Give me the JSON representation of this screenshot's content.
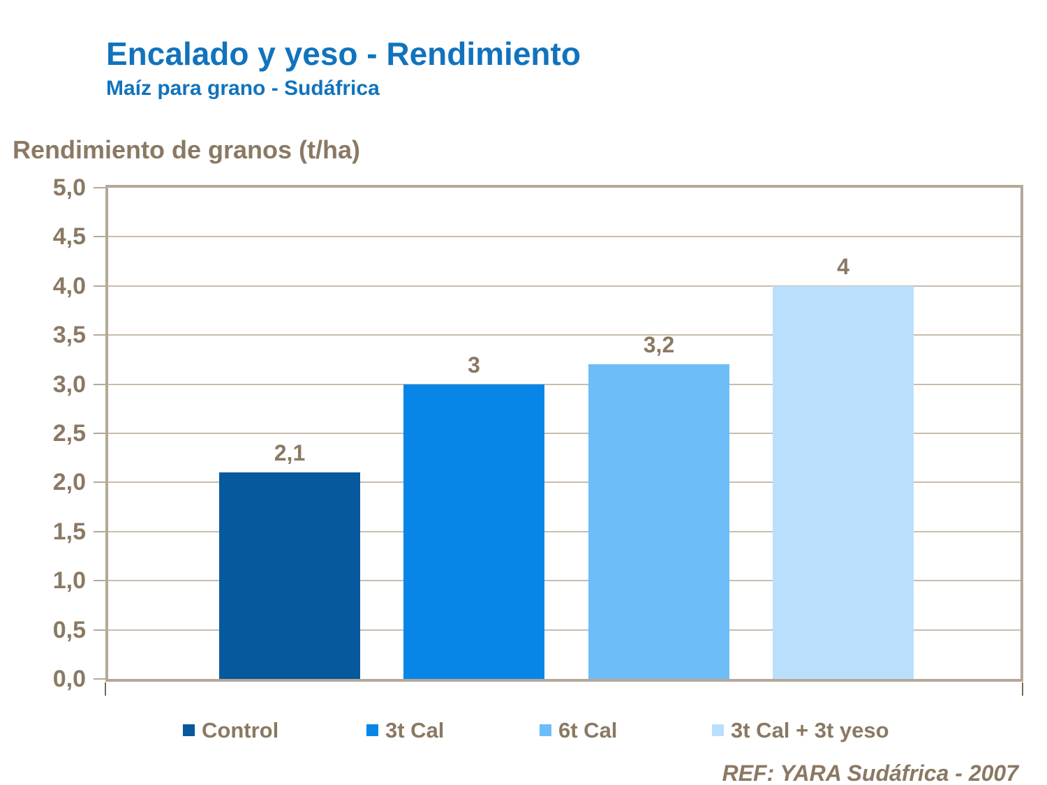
{
  "title": "Encalado y yeso - Rendimiento",
  "subtitle": "Maíz para grano - Sudáfrica",
  "axis_title": "Rendimiento de granos (t/ha)",
  "ref_note": "REF: YARA Sudáfrica - 2007",
  "colors": {
    "title_blue": "#1173BD",
    "text_brown": "#8A7963",
    "plot_border_tan": "#B5A899",
    "gridline_tan": "#C8BCAE",
    "tick_dash_tan": "#B5A899",
    "axis_stub_brown": "#7B6A53"
  },
  "chart_data": {
    "type": "bar",
    "categories": [
      "Control",
      "3t Cal",
      "6t Cal",
      "3t Cal + 3t yeso"
    ],
    "values": [
      2.1,
      3,
      3.2,
      4
    ],
    "value_labels": [
      "2,1",
      "3",
      "3,2",
      "4"
    ],
    "series_colors": [
      "#05599C",
      "#0886E8",
      "#6DBDF8",
      "#BADFFC"
    ],
    "title": "Encalado y yeso - Rendimiento",
    "subtitle": "Maíz para grano - Sudáfrica",
    "xlabel": "",
    "ylabel": "Rendimiento de granos (t/ha)",
    "ylim": [
      0,
      5
    ],
    "ytick_step": 0.5,
    "ytick_labels": [
      "0,0",
      "0,5",
      "1,0",
      "1,5",
      "2,0",
      "2,5",
      "3,0",
      "3,5",
      "4,0",
      "4,5",
      "5,0"
    ],
    "grid": true,
    "legend_position": "bottom"
  }
}
